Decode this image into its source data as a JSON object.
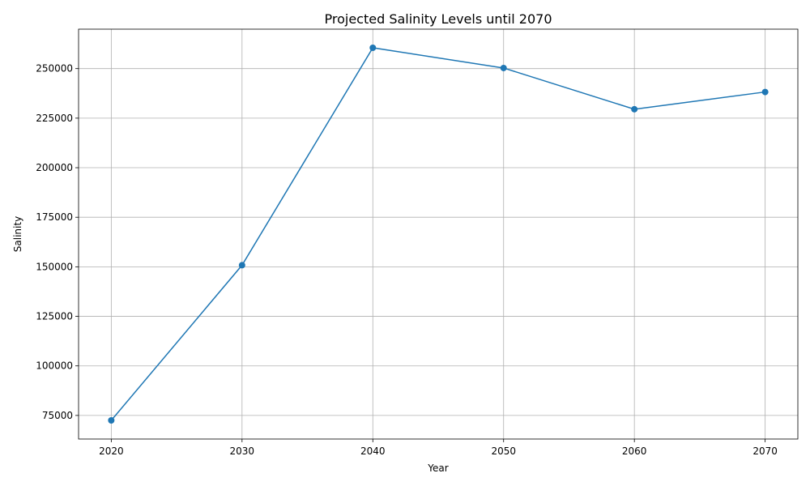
{
  "chart_data": {
    "type": "line",
    "title": "Projected Salinity Levels until 2070",
    "xlabel": "Year",
    "ylabel": "Salinity",
    "x": [
      2020,
      2030,
      2040,
      2050,
      2060,
      2070
    ],
    "series": [
      {
        "values": [
          72500,
          150800,
          260500,
          250300,
          229500,
          238200
        ],
        "color": "#1f77b4",
        "marker": "circle"
      }
    ],
    "x_ticks": [
      "2020",
      "2030",
      "2040",
      "2050",
      "2060",
      "2070"
    ],
    "y_ticks": [
      "75000",
      "100000",
      "125000",
      "150000",
      "175000",
      "200000",
      "225000",
      "250000"
    ],
    "xlim": [
      2017.5,
      2072.5
    ],
    "ylim": [
      63100,
      269900
    ],
    "grid": true
  }
}
